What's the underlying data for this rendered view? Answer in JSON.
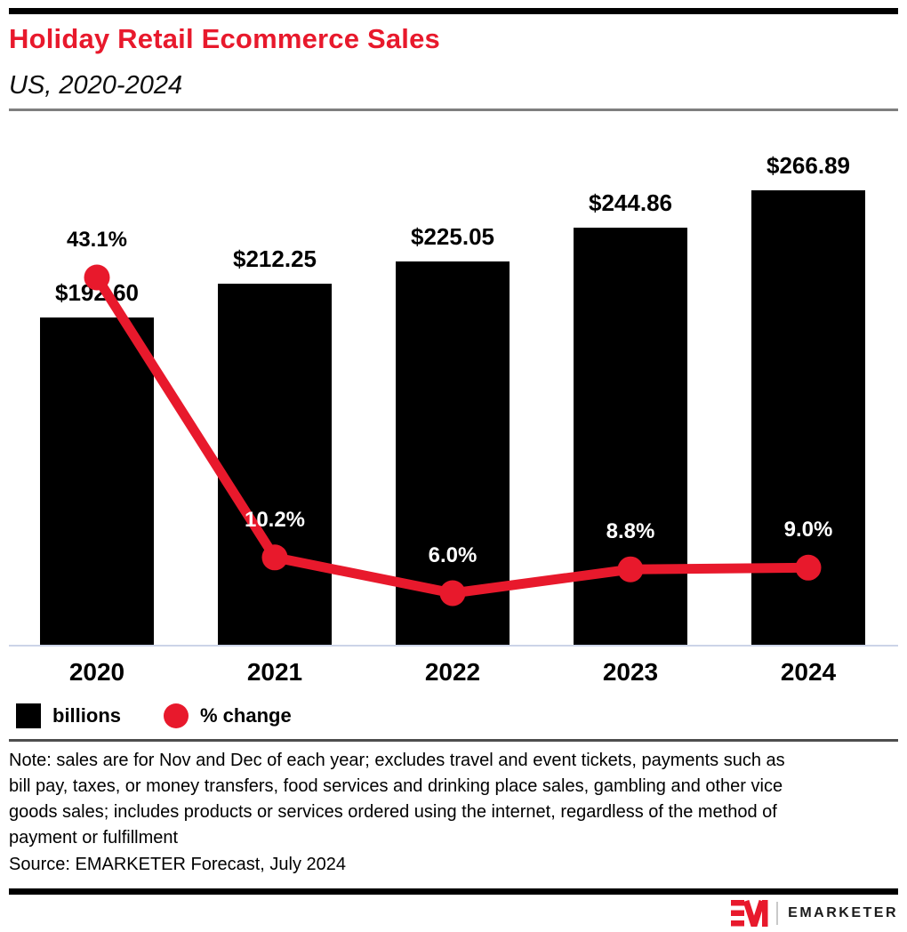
{
  "header": {
    "title": "Holiday Retail Ecommerce Sales",
    "subtitle": "US, 2020-2024"
  },
  "chart_data": {
    "type": "bar+line",
    "categories": [
      "2020",
      "2021",
      "2022",
      "2023",
      "2024"
    ],
    "series": [
      {
        "name": "billions",
        "type": "bar",
        "color": "#000000",
        "values": [
          192.6,
          212.25,
          225.05,
          244.86,
          266.89
        ],
        "labels": [
          "$192.60",
          "$212.25",
          "$225.05",
          "$244.86",
          "$266.89"
        ]
      },
      {
        "name": "% change",
        "type": "line",
        "color": "#e8192c",
        "values": [
          43.1,
          10.2,
          6.0,
          8.8,
          9.0
        ],
        "labels": [
          "43.1%",
          "10.2%",
          "6.0%",
          "8.8%",
          "9.0%"
        ],
        "label_colors": [
          "#000000",
          "#ffffff",
          "#ffffff",
          "#ffffff",
          "#ffffff"
        ]
      }
    ],
    "title": "Holiday Retail Ecommerce Sales",
    "subtitle": "US, 2020-2024",
    "xlabel": "",
    "ylabel": "",
    "grid": false,
    "legend_position": "bottom-left",
    "legend": [
      {
        "label": "billions",
        "swatch": "square",
        "color": "#000000"
      },
      {
        "label": "% change",
        "swatch": "circle",
        "color": "#e8192c"
      }
    ]
  },
  "legend": {
    "bar_label": "billions",
    "line_label": "% change"
  },
  "note": "Note: sales are for Nov and Dec of each year; excludes travel and event tickets, payments such as bill pay, taxes, or money transfers, food services and drinking place sales, gambling and other vice goods sales; includes products or services ordered using the internet, regardless of the method of payment or fulfillment",
  "source": "Source: EMARKETER Forecast, July 2024",
  "footer": {
    "brand": "EMARKETER"
  },
  "colors": {
    "accent_red": "#e8192c",
    "bar_black": "#000000",
    "axis_line": "#ccd4e8",
    "header_rule": "#7f7f7f",
    "legend_rule": "#4d4d4d"
  }
}
